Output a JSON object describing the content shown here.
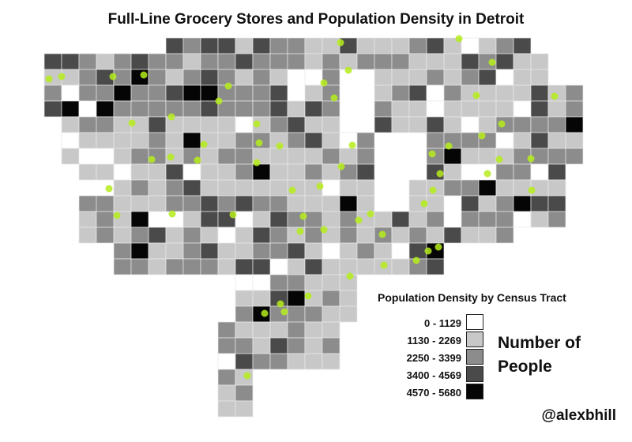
{
  "title": "Full-Line Grocery Stores and Population Density in Detroit",
  "legend": {
    "title": "Population Density by Census Tract",
    "classes": [
      {
        "label": "0 - 1129",
        "color": "#ffffff"
      },
      {
        "label": "1130 - 2269",
        "color": "#c8c8c8"
      },
      {
        "label": "2250 - 3399",
        "color": "#8c8c8c"
      },
      {
        "label": "3400 - 4569",
        "color": "#4a4a4a"
      },
      {
        "label": "4570 - 5680",
        "color": "#050505"
      }
    ],
    "caption": "Number of People"
  },
  "credit": "@alexbhill",
  "colors": {
    "store_marker": "#b5ec1c",
    "tract_border": "#e8e8e8",
    "background": "#ffffff"
  }
}
